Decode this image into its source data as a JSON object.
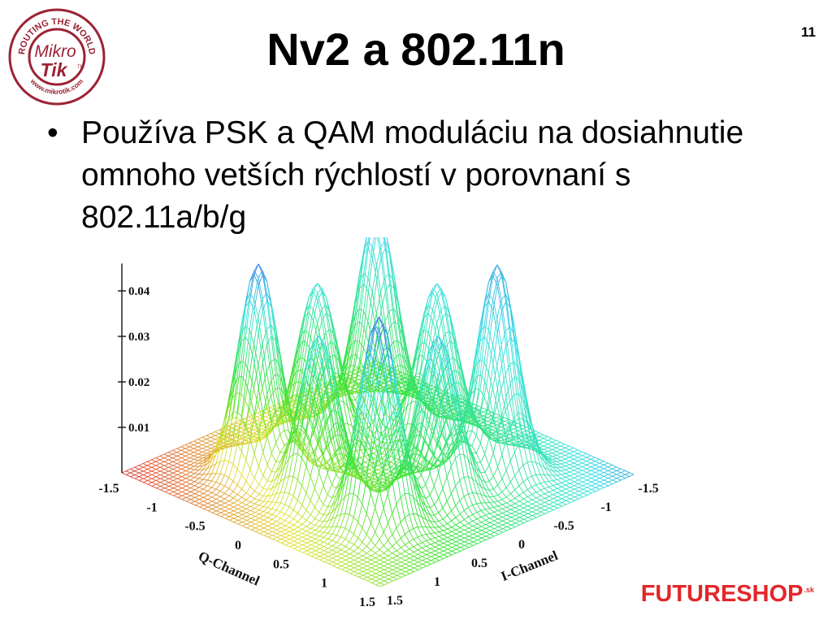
{
  "slide": {
    "title": "Nv2 a 802.11n",
    "page_number": "11",
    "bullet_text": "Používa PSK a QAM moduláciu na dosiahnutie omnoho vetších rýchlostí v porovnaní s 802.11a/b/g",
    "logo": {
      "top_text": "ROUTING THE WORLD",
      "line1": "Mikro",
      "line2": "Tik",
      "tm": "TM",
      "bottom_text": "www.mikrotik.com"
    },
    "brand": {
      "name": "FUTURESHOP",
      "suffix": ".sk"
    },
    "colors": {
      "logo_red": "#9b2335",
      "brand_red": "#e3262b",
      "title": "#000000"
    }
  },
  "chart_data": {
    "type": "surface",
    "z_ticks": [
      "0.04",
      "0.03",
      "0.02",
      "0.01"
    ],
    "q_ticks": [
      "-1.5",
      "-1",
      "-0.5",
      "0",
      "0.5",
      "1",
      "1.5"
    ],
    "i_ticks": [
      "-1.5",
      "-1",
      "-0.5",
      "0",
      "0.5",
      "1",
      "1.5"
    ],
    "xlabel": "Q-Channel",
    "ylabel": "I-Channel",
    "peaks": [
      {
        "i": -0.7,
        "q": -0.7,
        "z": 0.046
      },
      {
        "i": -0.7,
        "q": 0.7,
        "z": 0.046
      },
      {
        "i": 0.7,
        "q": -0.7,
        "z": 0.046
      },
      {
        "i": 0.7,
        "q": 0.7,
        "z": 0.046
      },
      {
        "i": 0.0,
        "q": -0.7,
        "z": 0.036
      },
      {
        "i": 0.0,
        "q": 0.7,
        "z": 0.036
      },
      {
        "i": -0.7,
        "q": 0.0,
        "z": 0.036
      },
      {
        "i": 0.7,
        "q": 0.0,
        "z": 0.036
      }
    ]
  }
}
